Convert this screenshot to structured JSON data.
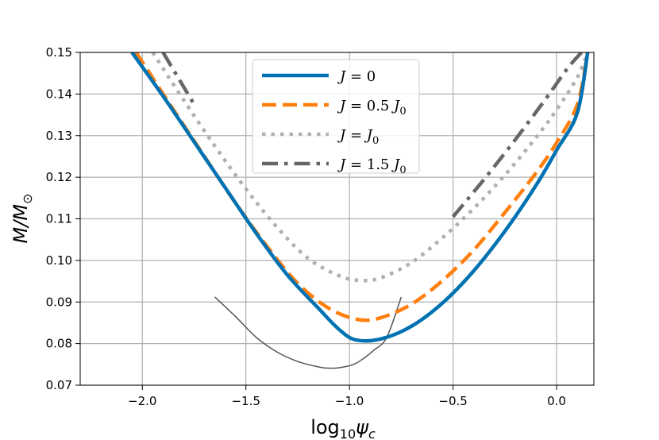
{
  "chart_data": {
    "type": "line",
    "title": "",
    "xlabel_main": "log",
    "xlabel_sub": "10",
    "xlabel_var": "ψ",
    "xlabel_var_sub": "c",
    "ylabel_main": "M/M",
    "ylabel_sub": "⊙",
    "xlim": [
      -2.3,
      0.18
    ],
    "ylim": [
      0.07,
      0.15
    ],
    "grid": true,
    "x_ticks": [
      -2.0,
      -1.5,
      -1.0,
      -0.5,
      0.0
    ],
    "x_tick_labels": [
      "−2.0",
      "−1.5",
      "−1.0",
      "−0.5",
      "0.0"
    ],
    "y_ticks": [
      0.07,
      0.08,
      0.09,
      0.1,
      0.11,
      0.12,
      0.13,
      0.14,
      0.15
    ],
    "y_tick_labels": [
      "0.07",
      "0.08",
      "0.09",
      "0.10",
      "0.11",
      "0.12",
      "0.13",
      "0.14",
      "0.15"
    ],
    "legend_position": "top-center",
    "series": [
      {
        "name": "J = 0",
        "legend_prefix": "J = ",
        "legend_value": "0",
        "legend_unit": "",
        "color": "#0072b2",
        "style": "solid",
        "x": [
          -2.05,
          -1.9,
          -1.75,
          -1.6,
          -1.45,
          -1.3,
          -1.15,
          -1.05,
          -0.97,
          -0.85,
          -0.7,
          -0.55,
          -0.4,
          -0.25,
          -0.1,
          0.0,
          0.1,
          0.15
        ],
        "y": [
          0.15,
          0.1395,
          0.1285,
          0.1175,
          0.1065,
          0.0965,
          0.0885,
          0.0834,
          0.0809,
          0.0811,
          0.0842,
          0.0898,
          0.0975,
          0.107,
          0.118,
          0.1265,
          0.1355,
          0.15
        ]
      },
      {
        "name": "J = 0.5 J0",
        "legend_prefix": "J = ",
        "legend_value": "0.5 ",
        "legend_unit": "J0",
        "color": "#ff7f0e",
        "style": "dashed",
        "x": [
          -2.03,
          -1.88,
          -1.72,
          -1.56,
          -1.4,
          -1.25,
          -1.1,
          -0.96,
          -0.85,
          -0.7,
          -0.55,
          -0.4,
          -0.25,
          -0.1,
          0.0,
          0.1,
          0.15
        ],
        "y": [
          0.15,
          0.1385,
          0.1265,
          0.1145,
          0.1035,
          0.0945,
          0.0885,
          0.0858,
          0.0862,
          0.0895,
          0.0952,
          0.1025,
          0.1115,
          0.121,
          0.1283,
          0.1375,
          0.15
        ]
      },
      {
        "name": "J = J0",
        "legend_prefix": "J = ",
        "legend_value": "",
        "legend_unit": "J0",
        "color": "#b0b0b0",
        "style": "dotted",
        "x": [
          -1.95,
          -1.8,
          -1.65,
          -1.5,
          -1.35,
          -1.2,
          -1.05,
          -0.95,
          -0.85,
          -0.7,
          -0.55,
          -0.4,
          -0.25,
          -0.1,
          0.0,
          0.1,
          0.15
        ],
        "y": [
          0.15,
          0.1385,
          0.1275,
          0.1172,
          0.108,
          0.1005,
          0.0963,
          0.0952,
          0.0958,
          0.0995,
          0.1055,
          0.1125,
          0.1205,
          0.1295,
          0.1362,
          0.144,
          0.15
        ]
      },
      {
        "name": "J = 1.5 J0",
        "legend_prefix": "J = ",
        "legend_value": "1.5 ",
        "legend_unit": "J0",
        "color": "#666666",
        "style": "dashdot",
        "segments": [
          {
            "x": [
              -1.9,
              -1.75
            ],
            "y": [
              0.15,
              0.1375
            ]
          },
          {
            "x": [
              -0.5,
              -0.35,
              -0.2,
              -0.05,
              0.05,
              0.12
            ],
            "y": [
              0.1105,
              0.1195,
              0.129,
              0.139,
              0.146,
              0.15
            ]
          }
        ]
      },
      {
        "name": "unlabeled thin curve",
        "color": "#555555",
        "style": "thin",
        "in_legend": false,
        "x": [
          -1.65,
          -1.55,
          -1.45,
          -1.35,
          -1.25,
          -1.15,
          -1.1,
          -1.05,
          -0.98,
          -0.93,
          -0.88,
          -0.82,
          -0.75
        ],
        "y": [
          0.0912,
          0.0865,
          0.0815,
          0.078,
          0.0757,
          0.0744,
          0.0741,
          0.0742,
          0.075,
          0.0765,
          0.0785,
          0.0815,
          0.0912
        ]
      }
    ]
  }
}
